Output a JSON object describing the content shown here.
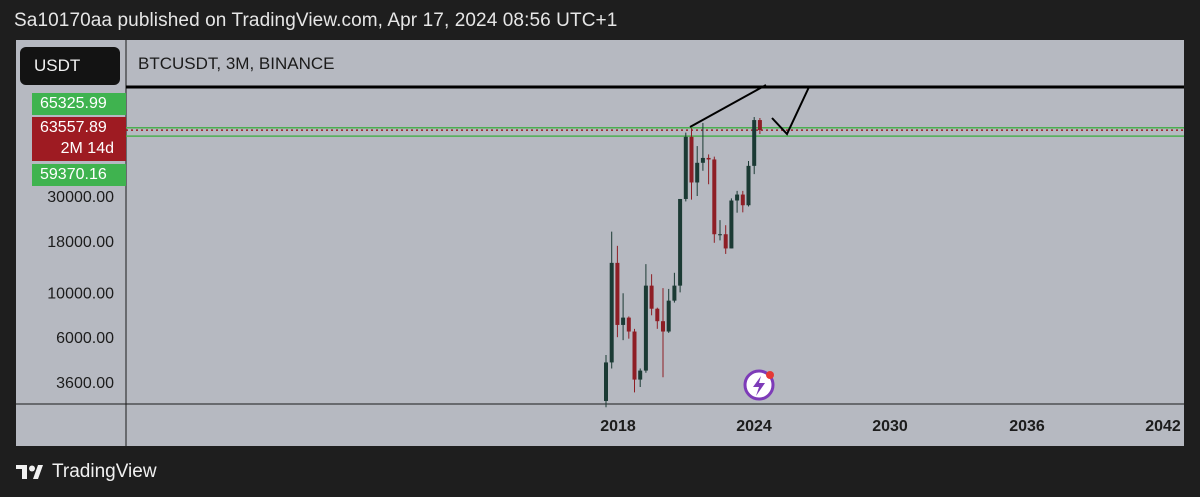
{
  "header": {
    "published": "Sa10170aa published on TradingView.com, Apr 17, 2024 08:56 UTC+1"
  },
  "toolbar": {
    "currency": "USDT",
    "symbol": "BTCUSDT, 3M, BINANCE"
  },
  "price_tags": {
    "upper": "65325.99",
    "current": "63557.89",
    "countdown": "2M 14d",
    "lower": "59370.16"
  },
  "footer": {
    "brand": "TradingView"
  },
  "colors": {
    "up": "#1b3a34",
    "down": "#8e1e25",
    "background": "#b6b9c1",
    "tag_green": "#3fb34f",
    "tag_red": "#9e1b22"
  },
  "icons": {
    "logo": "tradingview-logo-icon",
    "emoji": "lightning-emoji-icon"
  },
  "chart_data": {
    "type": "candlestick",
    "scale": "log",
    "xticks": [
      "2018",
      "2024",
      "2030",
      "2036",
      "2042"
    ],
    "yticks": [
      3600,
      6000,
      10000,
      18000,
      30000
    ],
    "ytick_labels": [
      "3600.00",
      "6000.00",
      "10000.00",
      "18000.00",
      "30000.00"
    ],
    "horizontal_levels": {
      "upper": 65325.99,
      "current": 63557.89,
      "lower": 59370.16
    },
    "candles": [
      {
        "o": 2900,
        "h": 4900,
        "l": 2700,
        "c": 4500
      },
      {
        "o": 4500,
        "h": 20000,
        "l": 4200,
        "c": 14000
      },
      {
        "o": 14000,
        "h": 17000,
        "l": 6000,
        "c": 6900
      },
      {
        "o": 6900,
        "h": 9900,
        "l": 5800,
        "c": 7500
      },
      {
        "o": 7500,
        "h": 7600,
        "l": 5900,
        "c": 6400
      },
      {
        "o": 6400,
        "h": 6600,
        "l": 3200,
        "c": 3700
      },
      {
        "o": 3700,
        "h": 4200,
        "l": 3400,
        "c": 4100
      },
      {
        "o": 4100,
        "h": 13800,
        "l": 4000,
        "c": 10800
      },
      {
        "o": 10800,
        "h": 12300,
        "l": 7700,
        "c": 8300
      },
      {
        "o": 8300,
        "h": 8400,
        "l": 6600,
        "c": 7200
      },
      {
        "o": 7200,
        "h": 10500,
        "l": 3800,
        "c": 6400
      },
      {
        "o": 6400,
        "h": 10400,
        "l": 6300,
        "c": 9100
      },
      {
        "o": 9100,
        "h": 12500,
        "l": 8900,
        "c": 10800
      },
      {
        "o": 10800,
        "h": 29000,
        "l": 10000,
        "c": 29000
      },
      {
        "o": 29000,
        "h": 61800,
        "l": 28200,
        "c": 58900
      },
      {
        "o": 58900,
        "h": 64900,
        "l": 28800,
        "c": 35000
      },
      {
        "o": 35000,
        "h": 53000,
        "l": 30000,
        "c": 43800
      },
      {
        "o": 43800,
        "h": 69000,
        "l": 40000,
        "c": 46300
      },
      {
        "o": 46300,
        "h": 48200,
        "l": 34300,
        "c": 45500
      },
      {
        "o": 45500,
        "h": 47000,
        "l": 17600,
        "c": 19400
      },
      {
        "o": 19400,
        "h": 22800,
        "l": 18100,
        "c": 19400
      },
      {
        "o": 19400,
        "h": 21500,
        "l": 15500,
        "c": 16500
      },
      {
        "o": 16500,
        "h": 29200,
        "l": 16500,
        "c": 28500
      },
      {
        "o": 28500,
        "h": 31800,
        "l": 24800,
        "c": 30500
      },
      {
        "o": 30500,
        "h": 31800,
        "l": 24900,
        "c": 27000
      },
      {
        "o": 27000,
        "h": 44700,
        "l": 26600,
        "c": 42300
      },
      {
        "o": 42300,
        "h": 73800,
        "l": 38500,
        "c": 71300
      },
      {
        "o": 71300,
        "h": 73000,
        "l": 60800,
        "c": 63600
      }
    ]
  }
}
